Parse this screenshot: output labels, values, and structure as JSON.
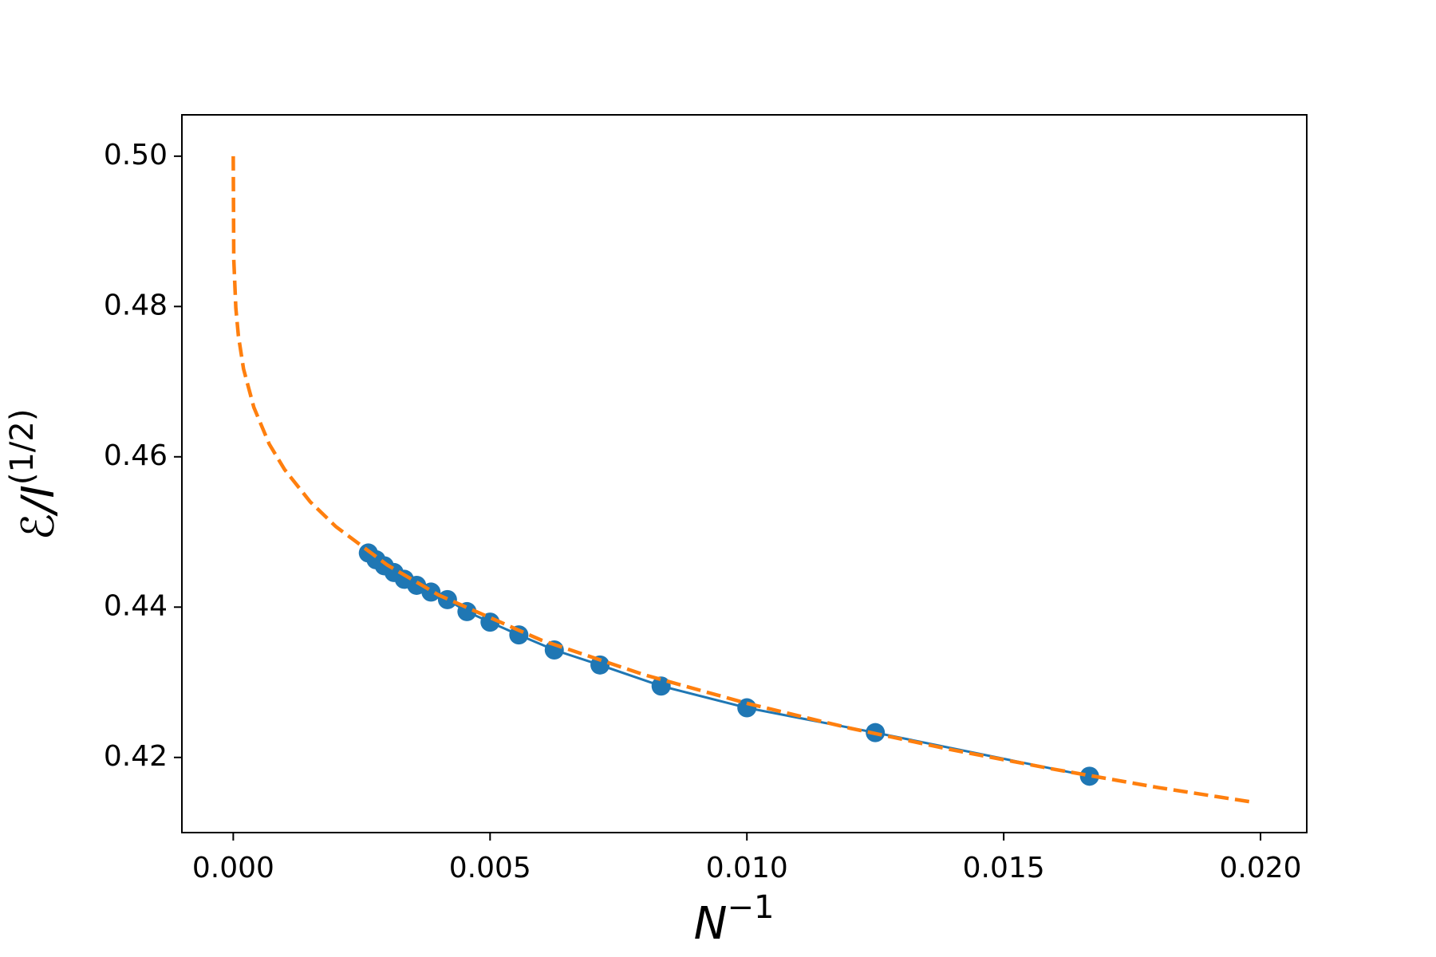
{
  "chart_data": {
    "type": "line",
    "xlabel": "N",
    "xlabel_sup": "−1",
    "ylabel": "ℰ/I",
    "ylabel_sup": "(1/2)",
    "xlim": [
      -0.001,
      0.0209
    ],
    "ylim": [
      0.41,
      0.5055
    ],
    "xticks": [
      {
        "value": 0,
        "label": "0.000"
      },
      {
        "value": 0.005,
        "label": "0.005"
      },
      {
        "value": 0.01,
        "label": "0.010"
      },
      {
        "value": 0.015,
        "label": "0.015"
      },
      {
        "value": 0.02,
        "label": "0.020"
      }
    ],
    "yticks": [
      0.42,
      0.44,
      0.46,
      0.48,
      {
        "value": 0.5,
        "label": "0.50"
      }
    ],
    "grid": false,
    "series": [
      {
        "color": "#1f77b4",
        "markers": true,
        "dashed": false,
        "x": [
          0.01667,
          0.0125,
          0.01,
          0.00833,
          0.00714,
          0.00625,
          0.00556,
          0.005,
          0.00455,
          0.00417,
          0.00385,
          0.00357,
          0.00333,
          0.00313,
          0.00294,
          0.00278,
          0.00263
        ],
        "values": [
          0.4175,
          0.4233,
          0.4266,
          0.4295,
          0.4323,
          0.4343,
          0.4363,
          0.438,
          0.4394,
          0.441,
          0.442,
          0.4429,
          0.4437,
          0.4446,
          0.4455,
          0.4463,
          0.4472
        ]
      },
      {
        "color": "#ff7f0e",
        "markers": false,
        "dashed": true,
        "x": [
          0,
          1e-05,
          5e-05,
          0.0001,
          0.0002,
          0.0004,
          0.0007,
          0.001,
          0.0015,
          0.002,
          0.003,
          0.004,
          0.006,
          0.008,
          0.01,
          0.012,
          0.014,
          0.016,
          0.018,
          0.0198
        ],
        "values": [
          0.5,
          0.4863,
          0.4798,
          0.4761,
          0.4717,
          0.4666,
          0.4617,
          0.4583,
          0.454,
          0.4507,
          0.4456,
          0.4416,
          0.4356,
          0.431,
          0.4272,
          0.4239,
          0.421,
          0.4184,
          0.416,
          0.4141
        ]
      }
    ]
  }
}
